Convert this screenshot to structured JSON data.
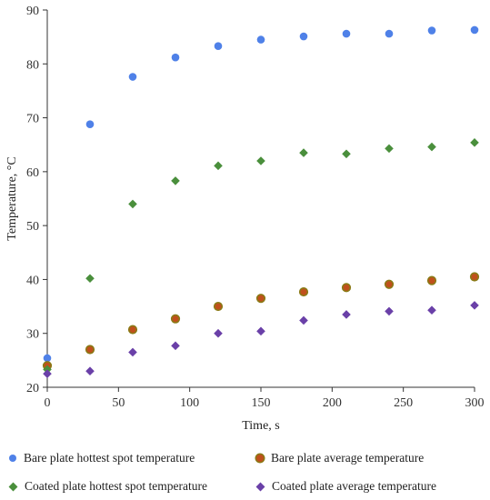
{
  "chart_data": {
    "type": "scatter",
    "title": "",
    "xlabel": "Time, s",
    "ylabel": "Temperature, °C",
    "xlim": [
      0,
      300
    ],
    "ylim": [
      20,
      90
    ],
    "xticks": [
      0,
      50,
      100,
      150,
      200,
      250,
      300
    ],
    "yticks": [
      20,
      30,
      40,
      50,
      60,
      70,
      80,
      90
    ],
    "grid": false,
    "legend_position": "bottom",
    "series": [
      {
        "name": "Bare plate hottest spot temperature",
        "marker": "circle",
        "color": "#4f81e8",
        "x": [
          0,
          30,
          60,
          90,
          120,
          150,
          180,
          210,
          240,
          270,
          300
        ],
        "y": [
          25.4,
          68.8,
          77.6,
          81.2,
          83.3,
          84.5,
          85.1,
          85.6,
          85.6,
          86.2,
          86.3
        ]
      },
      {
        "name": "Bare plate average temperature",
        "marker": "circle",
        "color": "#c0501c",
        "edge": "#8a7a16",
        "x": [
          0,
          30,
          60,
          90,
          120,
          150,
          180,
          210,
          240,
          270,
          300
        ],
        "y": [
          24.0,
          27.0,
          30.7,
          32.7,
          35.0,
          36.5,
          37.7,
          38.5,
          39.1,
          39.8,
          40.5
        ]
      },
      {
        "name": "Coated plate hottest spot temperature",
        "marker": "diamond",
        "color": "#4a8f3c",
        "x": [
          0,
          30,
          60,
          90,
          120,
          150,
          180,
          210,
          240,
          270,
          300
        ],
        "y": [
          23.3,
          40.2,
          54.0,
          58.3,
          61.1,
          62.0,
          63.5,
          63.3,
          64.3,
          64.6,
          65.4
        ]
      },
      {
        "name": "Coated plate average temperature",
        "marker": "diamond",
        "color": "#6a40a8",
        "x": [
          0,
          30,
          60,
          90,
          120,
          150,
          180,
          210,
          240,
          270,
          300
        ],
        "y": [
          22.5,
          23.0,
          26.5,
          27.7,
          30.0,
          30.4,
          32.4,
          33.5,
          34.1,
          34.3,
          35.2
        ]
      }
    ]
  }
}
